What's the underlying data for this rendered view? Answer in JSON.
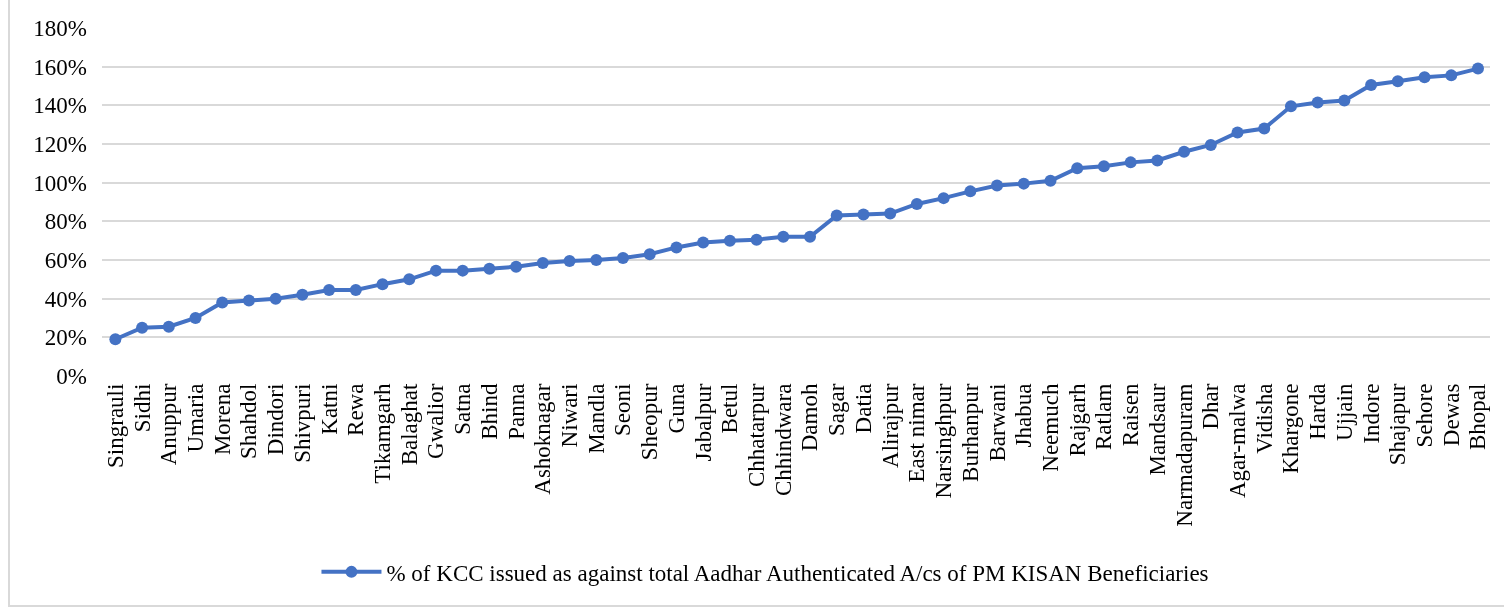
{
  "chart_data": {
    "type": "line",
    "categories": [
      "Singrauli",
      "Sidhi",
      "Anuppur",
      "Umaria",
      "Morena",
      "Shahdol",
      "Dindori",
      "Shivpuri",
      "Katni",
      "Rewa",
      "Tikamgarh",
      "Balaghat",
      "Gwalior",
      "Satna",
      "Bhind",
      "Panna",
      "Ashoknagar",
      "Niwari",
      "Mandla",
      "Seoni",
      "Sheopur",
      "Guna",
      "Jabalpur",
      "Betul",
      "Chhatarpur",
      "Chhindwara",
      "Damoh",
      "Sagar",
      "Datia",
      "Alirajpur",
      "East nimar",
      "Narsinghpur",
      "Burhanpur",
      "Barwani",
      "Jhabua",
      "Neemuch",
      "Rajgarh",
      "Ratlam",
      "Raisen",
      "Mandsaur",
      "Narmadapuram",
      "Dhar",
      "Agar-malwa",
      "Vidisha",
      "Khargone",
      "Harda",
      "Ujjain",
      "Indore",
      "Shajapur",
      "Sehore",
      "Dewas",
      "Bhopal"
    ],
    "series": [
      {
        "name": "% of KCC issued as against total Aadhar Authenticated A/cs of PM KISAN Beneficiaries",
        "color": "#4472c4",
        "values": [
          19,
          25,
          25.5,
          30,
          38,
          39,
          40,
          42,
          44.5,
          44.5,
          47.5,
          50,
          54.5,
          54.5,
          55.5,
          56.5,
          58.5,
          59.5,
          60,
          61,
          63,
          66.5,
          69,
          70,
          70.5,
          72,
          72,
          83,
          83.5,
          84,
          89,
          92,
          95.5,
          98.5,
          99.5,
          101,
          107.5,
          108.5,
          110.5,
          111.5,
          116,
          119.5,
          126,
          128,
          139.5,
          141.5,
          142.5,
          150.5,
          152.5,
          154.5,
          155.5,
          159
        ]
      }
    ],
    "ylim": [
      0,
      180
    ],
    "yticks": [
      {
        "value": 0,
        "label": "0%"
      },
      {
        "value": 20,
        "label": "20%"
      },
      {
        "value": 40,
        "label": "40%"
      },
      {
        "value": 60,
        "label": "60%"
      },
      {
        "value": 80,
        "label": "80%"
      },
      {
        "value": 100,
        "label": "100%"
      },
      {
        "value": 120,
        "label": "120%"
      },
      {
        "value": 140,
        "label": "140%"
      },
      {
        "value": 160,
        "label": "160%"
      },
      {
        "value": 180,
        "label": "180%"
      }
    ],
    "grid": "y",
    "legend": "bottom",
    "marker": "circle",
    "line_style": "solid"
  }
}
